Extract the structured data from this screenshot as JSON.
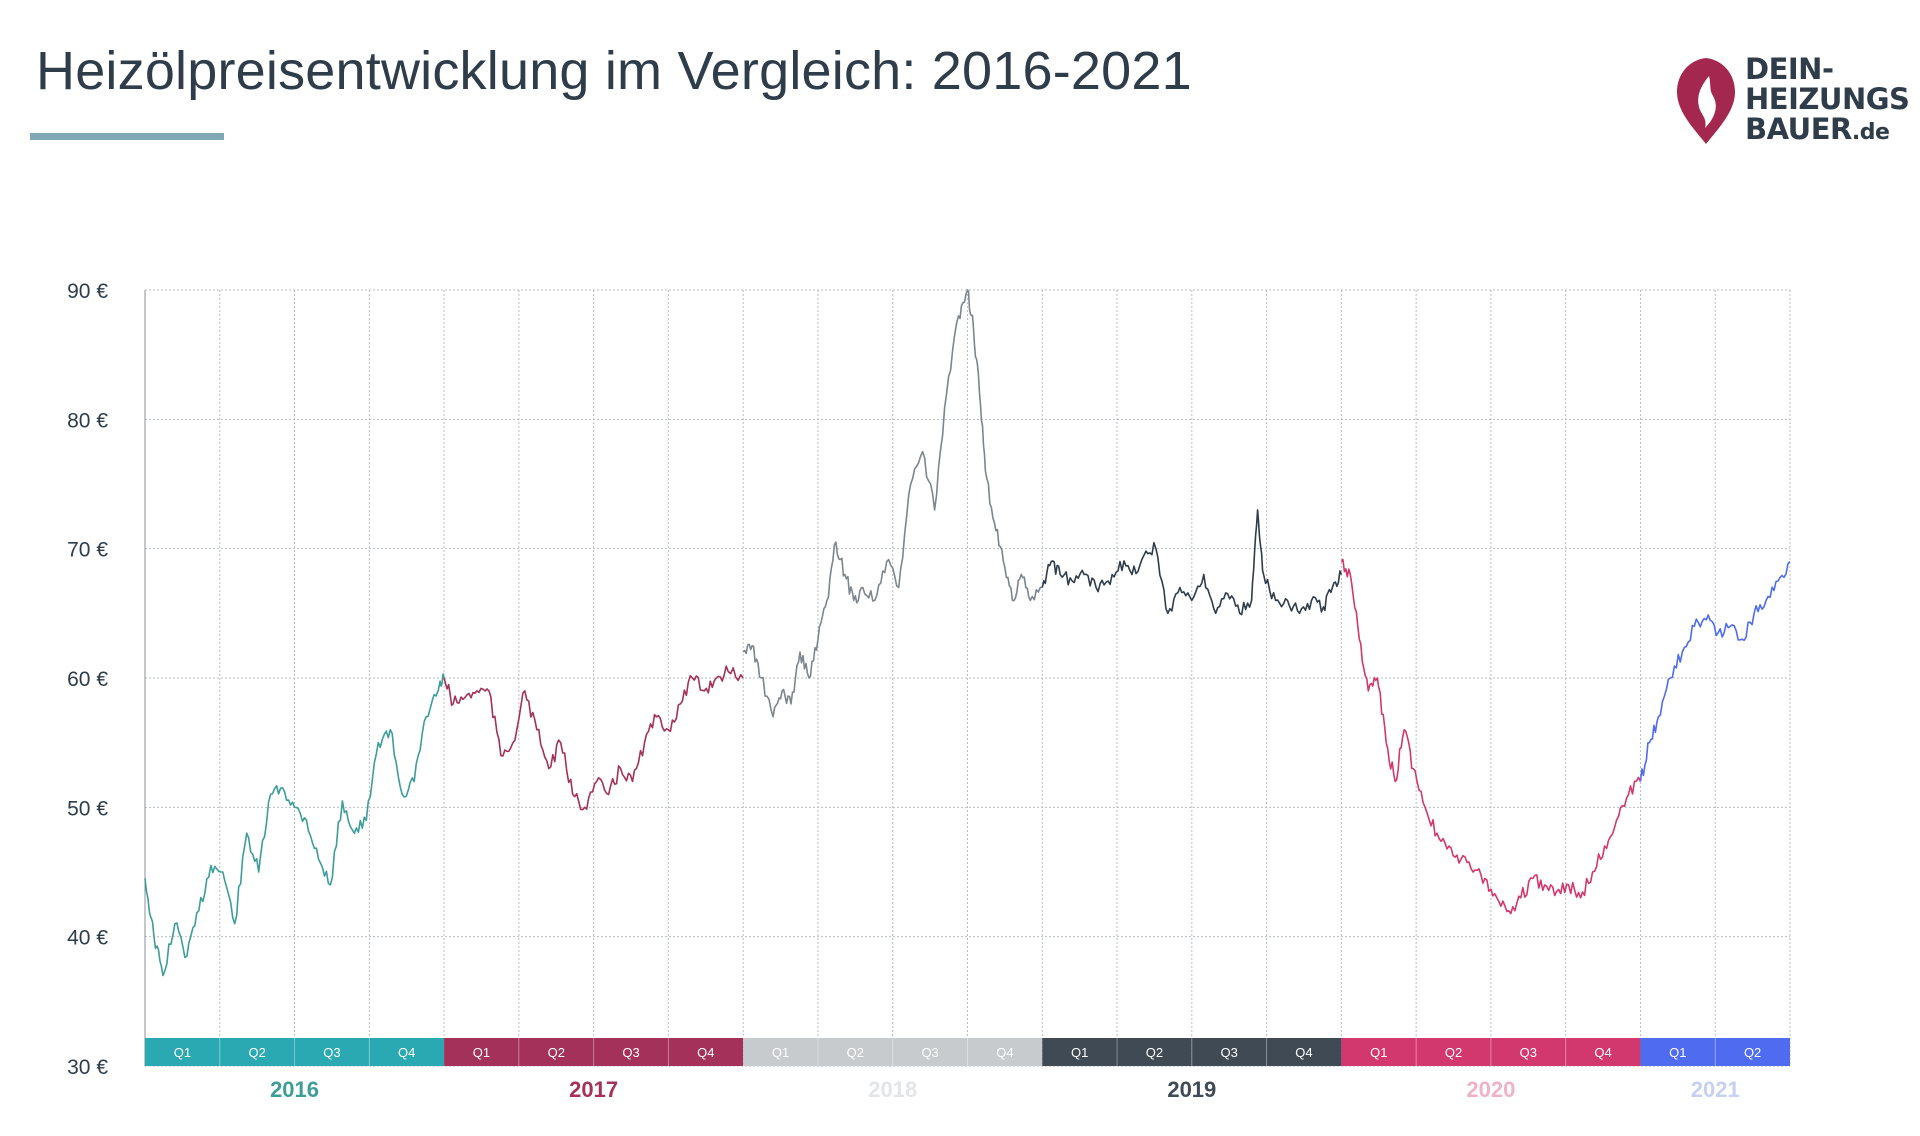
{
  "title": "Heizölpreisentwicklung im Vergleich: 2016-2021",
  "logo": {
    "line1": "DEIN-",
    "line2": "HEIZUNGS",
    "line3": "BAUER",
    "line3_suffix": ".de",
    "color_flame": "#a3274f"
  },
  "chart_data": {
    "type": "line",
    "title": "Heizölpreisentwicklung im Vergleich: 2016-2021",
    "xlabel": "",
    "ylabel": "",
    "ylim": [
      30,
      90
    ],
    "yticks": [
      "30 €",
      "40 €",
      "50 €",
      "60 €",
      "70 €",
      "80 €",
      "90 €"
    ],
    "ytick_values": [
      30,
      40,
      50,
      60,
      70,
      80,
      90
    ],
    "xlim": [
      2016.0,
      2021.5
    ],
    "grid": true,
    "x_unit": "year",
    "years": [
      {
        "label": "2016",
        "color": "#2aa9b3",
        "label_color": "#3d9d99",
        "quarters": [
          "Q1",
          "Q2",
          "Q3",
          "Q4"
        ]
      },
      {
        "label": "2017",
        "color": "#a3315a",
        "label_color": "#a3315a",
        "quarters": [
          "Q1",
          "Q2",
          "Q3",
          "Q4"
        ]
      },
      {
        "label": "2018",
        "color": "#c8cbce",
        "label_color": "#e3e5e7",
        "quarters": [
          "Q1",
          "Q2",
          "Q3",
          "Q4"
        ]
      },
      {
        "label": "2019",
        "color": "#3f4a55",
        "label_color": "#3f4a55",
        "quarters": [
          "Q1",
          "Q2",
          "Q3",
          "Q4"
        ]
      },
      {
        "label": "2020",
        "color": "#d2386e",
        "label_color": "#f0b2c6",
        "quarters": [
          "Q1",
          "Q2",
          "Q3",
          "Q4"
        ]
      },
      {
        "label": "2021",
        "color": "#4f6cf0",
        "label_color": "#c5d0f3",
        "quarters": [
          "Q1",
          "Q2"
        ]
      }
    ],
    "series": [
      {
        "year": "2016",
        "color": "#3d9d99",
        "x": [
          2016.0,
          2016.03,
          2016.06,
          2016.1,
          2016.14,
          2016.18,
          2016.22,
          2016.26,
          2016.3,
          2016.34,
          2016.38,
          2016.42,
          2016.46,
          2016.5,
          2016.54,
          2016.58,
          2016.62,
          2016.66,
          2016.7,
          2016.74,
          2016.78,
          2016.82,
          2016.86,
          2016.9,
          2016.94,
          2016.98,
          2017.0
        ],
        "y": [
          44.5,
          40,
          37,
          41,
          38.5,
          42,
          45.5,
          45,
          41,
          48,
          45,
          51,
          51.5,
          50,
          49,
          46,
          44,
          50.5,
          48,
          49,
          55,
          56,
          51,
          52,
          57,
          59,
          60
        ]
      },
      {
        "year": "2017",
        "color": "#a3315a",
        "x": [
          2017.0,
          2017.03,
          2017.07,
          2017.11,
          2017.15,
          2017.19,
          2017.23,
          2017.27,
          2017.31,
          2017.35,
          2017.39,
          2017.43,
          2017.47,
          2017.51,
          2017.55,
          2017.59,
          2017.63,
          2017.67,
          2017.71,
          2017.75,
          2017.79,
          2017.83,
          2017.87,
          2017.91,
          2017.95,
          2018.0
        ],
        "y": [
          60,
          58,
          58.5,
          59,
          59,
          54,
          55,
          59,
          56,
          53,
          55,
          51,
          50,
          52,
          51,
          53,
          52,
          55,
          57,
          56,
          58,
          60,
          59,
          60,
          60.5,
          60
        ]
      },
      {
        "year": "2018",
        "color": "#7d858d",
        "x": [
          2018.0,
          2018.03,
          2018.06,
          2018.1,
          2018.13,
          2018.16,
          2018.19,
          2018.22,
          2018.25,
          2018.28,
          2018.31,
          2018.34,
          2018.37,
          2018.4,
          2018.44,
          2018.48,
          2018.52,
          2018.56,
          2018.6,
          2018.64,
          2018.68,
          2018.72,
          2018.75,
          2018.77,
          2018.79,
          2018.81,
          2018.84,
          2018.87,
          2018.9,
          2018.93,
          2018.96,
          2019.0
        ],
        "y": [
          62,
          62.5,
          60,
          57,
          59,
          58,
          62,
          60,
          63,
          66,
          70.5,
          68,
          66,
          67,
          66,
          69,
          67,
          75,
          77.5,
          73,
          82,
          88,
          90,
          87,
          82,
          76,
          72,
          69,
          66,
          68,
          66,
          67
        ]
      },
      {
        "year": "2019",
        "color": "#2f3c4a",
        "x": [
          2019.0,
          2019.03,
          2019.06,
          2019.1,
          2019.14,
          2019.18,
          2019.22,
          2019.26,
          2019.3,
          2019.34,
          2019.38,
          2019.42,
          2019.46,
          2019.5,
          2019.54,
          2019.58,
          2019.62,
          2019.66,
          2019.7,
          2019.72,
          2019.74,
          2019.78,
          2019.82,
          2019.86,
          2019.9,
          2019.94,
          2019.97,
          2020.0
        ],
        "y": [
          67,
          69,
          68,
          67.5,
          68,
          67,
          67.5,
          69,
          68,
          69.5,
          70,
          65,
          67,
          66,
          68,
          65,
          66.5,
          65,
          66,
          73,
          68,
          66,
          66,
          65,
          66,
          65.5,
          67,
          68
        ]
      },
      {
        "year": "2020",
        "color": "#d2386e",
        "x": [
          2020.0,
          2020.03,
          2020.06,
          2020.09,
          2020.12,
          2020.15,
          2020.18,
          2020.21,
          2020.24,
          2020.28,
          2020.32,
          2020.36,
          2020.4,
          2020.44,
          2020.48,
          2020.52,
          2020.56,
          2020.6,
          2020.64,
          2020.68,
          2020.72,
          2020.76,
          2020.8,
          2020.84,
          2020.88,
          2020.92,
          2020.96,
          2021.0
        ],
        "y": [
          69,
          68,
          63,
          59,
          60,
          55,
          52,
          56,
          53,
          50,
          48,
          47,
          46,
          45,
          44.5,
          43,
          42,
          43,
          44.5,
          44,
          43.5,
          44,
          43,
          45,
          47,
          49,
          51,
          52
        ]
      },
      {
        "year": "2021",
        "color": "#4f6cf0",
        "x": [
          2021.0,
          2021.03,
          2021.06,
          2021.1,
          2021.14,
          2021.18,
          2021.22,
          2021.26,
          2021.3,
          2021.34,
          2021.38,
          2021.42,
          2021.46,
          2021.5
        ],
        "y": [
          52,
          55,
          57,
          60,
          62,
          64,
          64.5,
          63.5,
          64,
          63,
          65,
          66,
          67.5,
          69
        ]
      }
    ]
  }
}
